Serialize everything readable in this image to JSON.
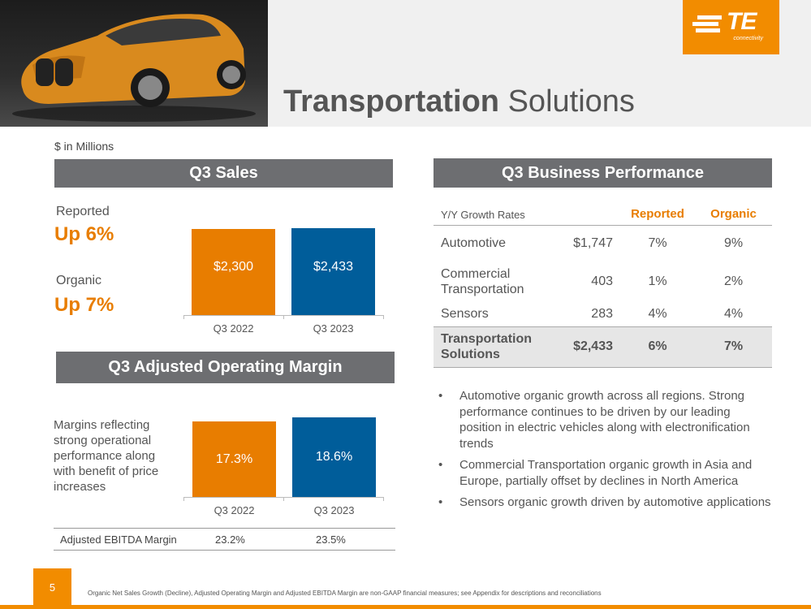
{
  "header": {
    "title_bold": "Transportation",
    "title_rest": " Solutions",
    "logo_text": "TE",
    "logo_sub": "connectivity"
  },
  "units": "$ in Millions",
  "sales": {
    "heading": "Q3 Sales",
    "reported_label": "Reported",
    "reported_value": "Up 6%",
    "organic_label": "Organic",
    "organic_value": "Up 7%"
  },
  "margin": {
    "heading": "Q3 Adjusted Operating Margin",
    "note": "Margins reflecting strong operational performance along with benefit of price increases",
    "ebitda_label": "Adjusted EBITDA Margin",
    "ebitda_2022": "23.2%",
    "ebitda_2023": "23.5%"
  },
  "performance": {
    "heading": "Q3 Business Performance",
    "col_label": "Y/Y Growth Rates",
    "col_reported": "Reported",
    "col_organic": "Organic",
    "rows": [
      {
        "segment": "Automotive",
        "sales": "$1,747",
        "reported": "7%",
        "organic": "9%"
      },
      {
        "segment": "Commercial Transportation",
        "sales": "403",
        "reported": "1%",
        "organic": "2%"
      },
      {
        "segment": "Sensors",
        "sales": "283",
        "reported": "4%",
        "organic": "4%"
      },
      {
        "segment": "Transportation Solutions",
        "sales": "$2,433",
        "reported": "6%",
        "organic": "7%"
      }
    ]
  },
  "bullets": [
    "Automotive organic growth across all regions. Strong performance continues to be driven by our leading position in electric vehicles along with electronification trends",
    "Commercial Transportation organic growth in Asia and Europe, partially offset by declines in North America",
    "Sensors organic growth driven by automotive applications"
  ],
  "bullet_char": "•",
  "colors": {
    "orange": "#E87D00",
    "blue": "#005D9A",
    "gray_bar": "#6D6E71"
  },
  "chart_data": [
    {
      "type": "bar",
      "categories": [
        "Q3 2022",
        "Q3 2023"
      ],
      "values": [
        2300,
        2433
      ],
      "labels": [
        "$2,300",
        "$2,433"
      ],
      "colors": [
        "#E87D00",
        "#005D9A"
      ]
    },
    {
      "type": "bar",
      "categories": [
        "Q3 2022",
        "Q3 2023"
      ],
      "values": [
        17.3,
        18.6
      ],
      "labels": [
        "17.3%",
        "18.6%"
      ],
      "colors": [
        "#E87D00",
        "#005D9A"
      ]
    }
  ],
  "footer": {
    "page": "5",
    "note": "Organic Net Sales Growth (Decline), Adjusted Operating Margin and Adjusted EBITDA Margin are non-GAAP financial measures; see Appendix for descriptions and reconciliations"
  }
}
